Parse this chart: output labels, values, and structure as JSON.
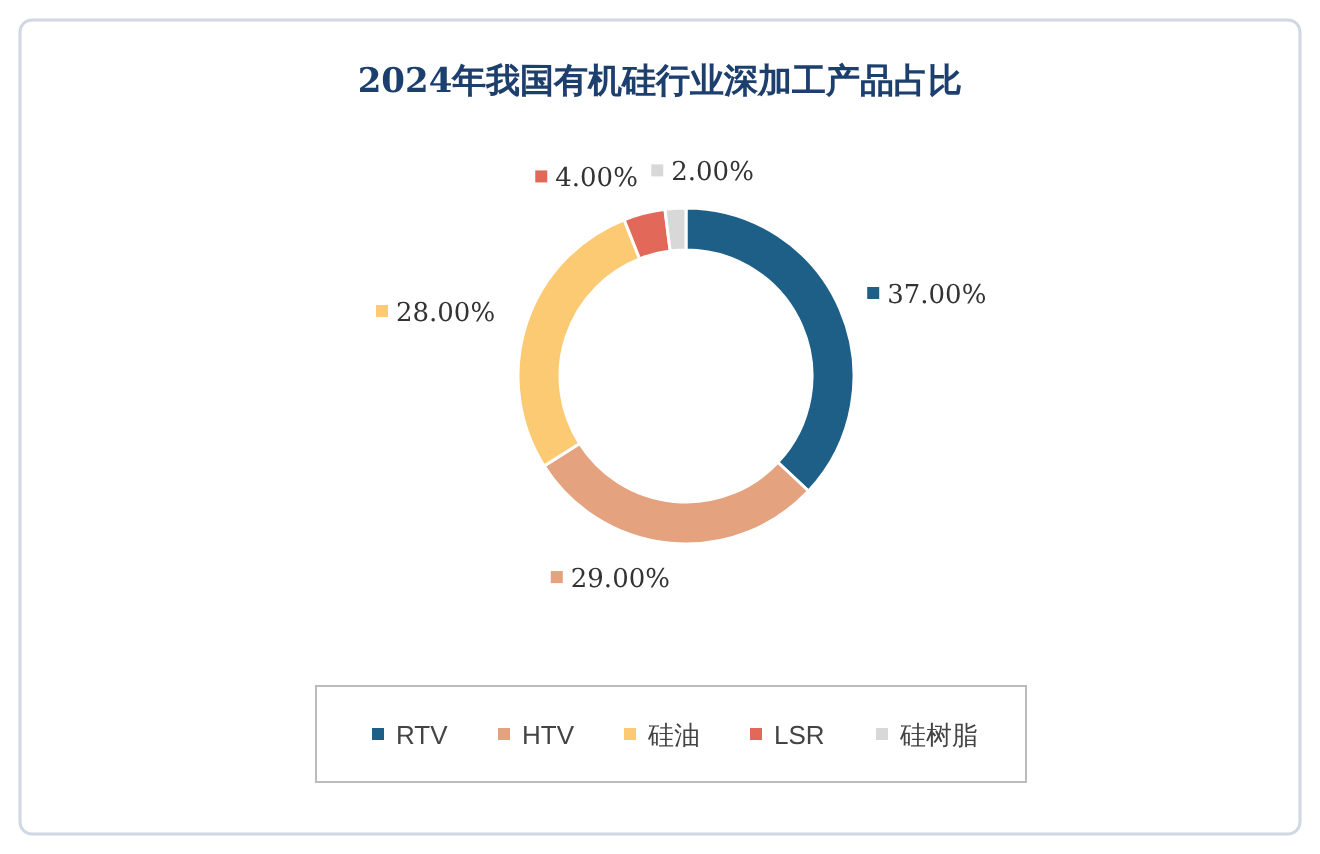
{
  "chart_data": {
    "type": "donut",
    "title": "2024年我国有机硅行业深加工产品占比",
    "categories": [
      "RTV",
      "HTV",
      "硅油",
      "LSR",
      "硅树脂"
    ],
    "values": [
      37,
      29,
      28,
      4,
      2
    ],
    "colors": [
      "#1d5f87",
      "#e4a27e",
      "#fbca72",
      "#e2695a",
      "#d8d8d8"
    ],
    "value_labels": [
      "37.00%",
      "29.00%",
      "28.00%",
      "4.00%",
      "2.00%"
    ],
    "legend": "bottom"
  }
}
